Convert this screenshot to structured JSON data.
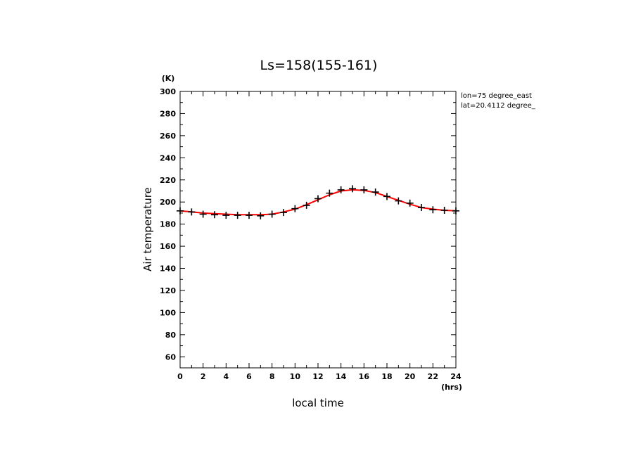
{
  "chart_data": {
    "type": "line",
    "title": "Ls=158(155-161)",
    "xlabel": "local time",
    "ylabel": "Air temperature",
    "x_unit": "(hrs)",
    "y_unit": "(K)",
    "xlim": [
      0,
      24
    ],
    "ylim": [
      50,
      300
    ],
    "x_ticks": [
      0,
      2,
      4,
      6,
      8,
      10,
      12,
      14,
      16,
      18,
      20,
      22,
      24
    ],
    "y_ticks": [
      60,
      80,
      100,
      120,
      140,
      160,
      180,
      200,
      220,
      240,
      260,
      280,
      300
    ],
    "x_minor_step": 1,
    "y_minor_step": 10,
    "annotations": [
      "lon=75 degree_east",
      "lat=20.4112 degree_"
    ],
    "grid": false,
    "series": [
      {
        "style": "markers",
        "marker": "plus",
        "color": "#000000",
        "x": [
          0,
          1,
          2,
          3,
          4,
          5,
          6,
          7,
          8,
          9,
          10,
          11,
          12,
          13,
          14,
          15,
          16,
          17,
          18,
          19,
          20,
          21,
          22,
          23,
          24
        ],
        "y": [
          192,
          191,
          189,
          188.5,
          188,
          188,
          188,
          187.5,
          189,
          190.5,
          194,
          197,
          203,
          208,
          211,
          212,
          211,
          209,
          205,
          201,
          199,
          195,
          193,
          192.5,
          192
        ]
      },
      {
        "style": "line",
        "color": "#ff0000",
        "x": [
          0,
          1,
          2,
          3,
          4,
          5,
          6,
          7,
          8,
          9,
          10,
          11,
          12,
          13,
          14,
          15,
          16,
          17,
          18,
          19,
          20,
          21,
          22,
          23,
          24
        ],
        "y": [
          192,
          191,
          190,
          189.5,
          189,
          188.5,
          188.5,
          188.5,
          189,
          191,
          193.5,
          197.5,
          202,
          206.5,
          210,
          211,
          210.5,
          208.5,
          205,
          201.5,
          198,
          195,
          193.5,
          192.5,
          192
        ]
      }
    ]
  }
}
